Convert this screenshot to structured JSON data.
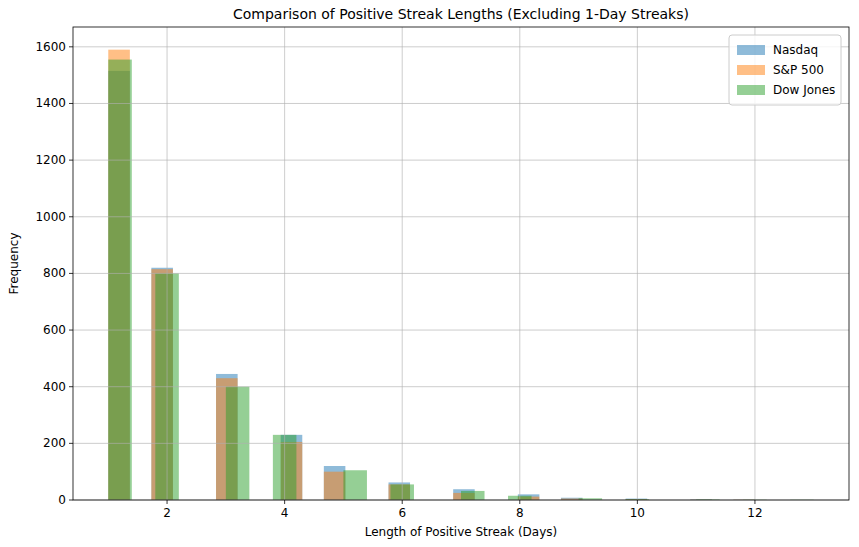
{
  "chart_data": {
    "type": "histogram",
    "title": "Comparison of Positive Streak Lengths (Excluding 1-Day Streaks)",
    "x_label": "Length of Positive Streak (Days)",
    "y_label": "Frequency",
    "xlim": [
      0.4,
      13.6
    ],
    "xticks": [
      2,
      4,
      6,
      8,
      10,
      12
    ],
    "ylim": [
      0,
      1670
    ],
    "yticks": [
      0,
      200,
      400,
      600,
      800,
      1000,
      1200,
      1400,
      1600
    ],
    "grid": true,
    "legend": "upper right",
    "series": [
      {
        "name": "Nasdaq",
        "color": "#1f77b4",
        "bins": [
          1,
          1.367,
          1.733,
          2.1,
          2.467,
          2.833,
          3.2,
          3.567,
          3.933,
          4.3,
          4.667,
          5.033,
          5.4,
          5.767,
          6.133,
          6.5,
          6.867,
          7.233,
          7.6,
          7.967,
          8.333,
          8.7,
          9.067,
          9.433,
          9.8,
          10.167,
          10.533,
          10.9,
          11.267,
          11.633,
          12
        ],
        "values": [
          1515,
          0,
          820,
          0,
          0,
          445,
          0,
          0,
          230,
          0,
          120,
          0,
          0,
          62,
          0,
          0,
          38,
          0,
          0,
          20,
          0,
          8,
          0,
          0,
          5,
          0,
          0,
          2,
          0,
          1
        ]
      },
      {
        "name": "S&P 500",
        "color": "#ff7f0e",
        "bins": [
          1,
          1.367,
          1.733,
          2.1,
          2.467,
          2.833,
          3.2,
          3.567,
          3.933,
          4.3,
          4.667,
          5.033,
          5.4,
          5.767,
          6.133,
          6.5,
          6.867,
          7.233,
          7.6,
          7.967,
          8.333,
          8.7,
          9.067,
          9.433,
          9.8,
          10.167,
          10.533,
          10.9,
          11.267,
          11.633,
          12
        ],
        "values": [
          1590,
          0,
          815,
          0,
          0,
          430,
          0,
          0,
          205,
          0,
          100,
          0,
          0,
          55,
          0,
          0,
          25,
          0,
          0,
          12,
          0,
          5,
          0,
          0,
          3,
          0,
          0,
          1,
          0,
          1
        ]
      },
      {
        "name": "Dow Jones",
        "color": "#2ca02c",
        "bins": [
          1,
          1.4,
          1.8,
          2.2,
          2.6,
          3,
          3.4,
          3.8,
          4.2,
          4.6,
          5,
          5.4,
          5.8,
          6.2,
          6.6,
          7,
          7.4,
          7.8,
          8.2,
          8.6,
          9,
          9.4,
          9.8,
          10.2,
          10.6,
          11,
          11.4,
          11.8,
          12.2,
          12.6,
          13
        ],
        "values": [
          1555,
          0,
          800,
          0,
          0,
          400,
          0,
          230,
          0,
          0,
          105,
          0,
          55,
          0,
          0,
          32,
          0,
          15,
          0,
          0,
          6,
          0,
          3,
          0,
          0,
          2,
          0,
          1,
          0,
          1
        ]
      }
    ]
  }
}
